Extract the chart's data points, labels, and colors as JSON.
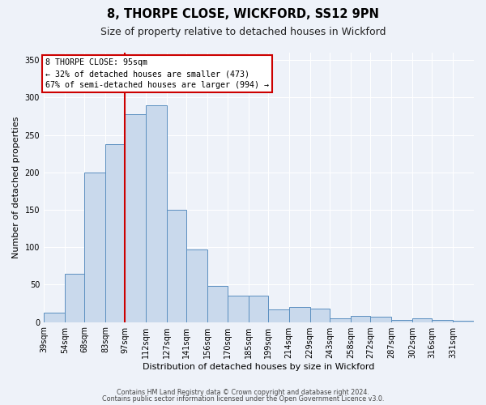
{
  "title": "8, THORPE CLOSE, WICKFORD, SS12 9PN",
  "subtitle": "Size of property relative to detached houses in Wickford",
  "xlabel": "Distribution of detached houses by size in Wickford",
  "ylabel": "Number of detached properties",
  "bar_color": "#c9d9ec",
  "bar_edge_color": "#5b8fc0",
  "vline_x": 97,
  "vline_color": "#cc0000",
  "categories": [
    "39sqm",
    "54sqm",
    "68sqm",
    "83sqm",
    "97sqm",
    "112sqm",
    "127sqm",
    "141sqm",
    "156sqm",
    "170sqm",
    "185sqm",
    "199sqm",
    "214sqm",
    "229sqm",
    "243sqm",
    "258sqm",
    "272sqm",
    "287sqm",
    "302sqm",
    "316sqm",
    "331sqm"
  ],
  "bin_edges": [
    39,
    54,
    68,
    83,
    97,
    112,
    127,
    141,
    156,
    170,
    185,
    199,
    214,
    229,
    243,
    258,
    272,
    287,
    302,
    316,
    331,
    346
  ],
  "values": [
    12,
    65,
    200,
    238,
    278,
    290,
    150,
    97,
    48,
    35,
    35,
    17,
    20,
    18,
    5,
    8,
    7,
    3,
    5,
    3,
    2
  ],
  "ylim": [
    0,
    360
  ],
  "yticks": [
    0,
    50,
    100,
    150,
    200,
    250,
    300,
    350
  ],
  "annotation_line1": "8 THORPE CLOSE: 95sqm",
  "annotation_line2": "← 32% of detached houses are smaller (473)",
  "annotation_line3": "67% of semi-detached houses are larger (994) →",
  "footnote1": "Contains HM Land Registry data © Crown copyright and database right 2024.",
  "footnote2": "Contains public sector information licensed under the Open Government Licence v3.0.",
  "background_color": "#eef2f9",
  "plot_bg_color": "#eef2f9",
  "grid_color": "#ffffff"
}
